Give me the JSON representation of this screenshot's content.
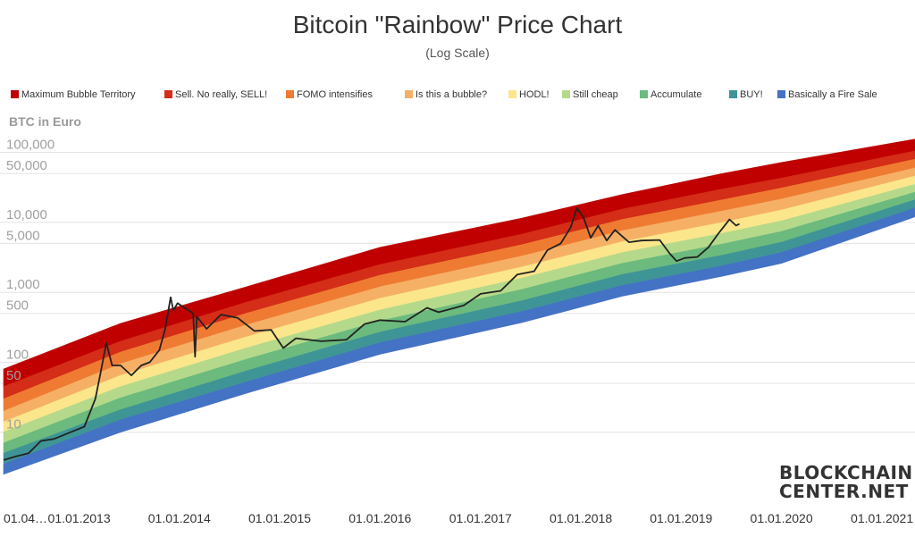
{
  "chart_data": {
    "type": "area",
    "title": "Bitcoin \"Rainbow\" Price Chart",
    "subtitle": "(Log Scale)",
    "ylabel": "BTC in Euro",
    "yscale": "log",
    "ylim": [
      1,
      350000
    ],
    "xlim": [
      "2012-04-01",
      "2021-05-01"
    ],
    "grid": true,
    "legend_position": "top",
    "x_ticks": [
      {
        "date": "2012-04-01",
        "label": "01.04…"
      },
      {
        "date": "2013-01-01",
        "label": "01.01.2013"
      },
      {
        "date": "2014-01-01",
        "label": "01.01.2014"
      },
      {
        "date": "2015-01-01",
        "label": "01.01.2015"
      },
      {
        "date": "2016-01-01",
        "label": "01.01.2016"
      },
      {
        "date": "2017-01-01",
        "label": "01.01.2017"
      },
      {
        "date": "2018-01-01",
        "label": "01.01.2018"
      },
      {
        "date": "2019-01-01",
        "label": "01.01.2019"
      },
      {
        "date": "2020-01-01",
        "label": "01.01.2020"
      },
      {
        "date": "2021-01-01",
        "label": "01.01.2021"
      }
    ],
    "y_ticks": [
      {
        "value": 10,
        "label": "10"
      },
      {
        "value": 50,
        "label": "50"
      },
      {
        "value": 100,
        "label": "100"
      },
      {
        "value": 500,
        "label": "500"
      },
      {
        "value": 1000,
        "label": "1,000"
      },
      {
        "value": 5000,
        "label": "5,000"
      },
      {
        "value": 10000,
        "label": "10,000"
      },
      {
        "value": 50000,
        "label": "50,000"
      },
      {
        "value": 100000,
        "label": "100,000"
      }
    ],
    "bands": [
      {
        "name": "Maximum Bubble Territory",
        "color": "#c00000",
        "upper": [
          {
            "date": "2012-04-01",
            "value": 80
          },
          {
            "date": "2013-06-01",
            "value": 360
          },
          {
            "date": "2014-09-01",
            "value": 1200
          },
          {
            "date": "2016-01-01",
            "value": 4400
          },
          {
            "date": "2017-06-01",
            "value": 11500
          },
          {
            "date": "2018-06-01",
            "value": 25000
          },
          {
            "date": "2019-06-01",
            "value": 50000
          },
          {
            "date": "2020-01-01",
            "value": 72000
          },
          {
            "date": "2021-05-01",
            "value": 155000
          }
        ]
      },
      {
        "name": "Sell. No really, SELL!",
        "color": "#d42d18",
        "upper": [
          {
            "date": "2012-04-01",
            "value": 45
          },
          {
            "date": "2013-06-01",
            "value": 200
          },
          {
            "date": "2014-09-01",
            "value": 720
          },
          {
            "date": "2016-01-01",
            "value": 2500
          },
          {
            "date": "2017-06-01",
            "value": 6800
          },
          {
            "date": "2018-06-01",
            "value": 15500
          },
          {
            "date": "2019-06-01",
            "value": 30000
          },
          {
            "date": "2020-01-01",
            "value": 43000
          },
          {
            "date": "2021-05-01",
            "value": 105000
          }
        ]
      },
      {
        "name": "FOMO intensifies",
        "color": "#ef7b33",
        "upper": [
          {
            "date": "2012-04-01",
            "value": 30
          },
          {
            "date": "2013-06-01",
            "value": 140
          },
          {
            "date": "2014-09-01",
            "value": 500
          },
          {
            "date": "2016-01-01",
            "value": 1750
          },
          {
            "date": "2017-06-01",
            "value": 4800
          },
          {
            "date": "2018-06-01",
            "value": 11000
          },
          {
            "date": "2019-06-01",
            "value": 21000
          },
          {
            "date": "2020-01-01",
            "value": 31000
          },
          {
            "date": "2021-05-01",
            "value": 80000
          }
        ]
      },
      {
        "name": "Is this a bubble?",
        "color": "#f6b066",
        "upper": [
          {
            "date": "2012-04-01",
            "value": 20
          },
          {
            "date": "2013-06-01",
            "value": 95
          },
          {
            "date": "2014-09-01",
            "value": 340
          },
          {
            "date": "2016-01-01",
            "value": 1200
          },
          {
            "date": "2017-06-01",
            "value": 3300
          },
          {
            "date": "2018-06-01",
            "value": 7600
          },
          {
            "date": "2019-06-01",
            "value": 14500
          },
          {
            "date": "2020-01-01",
            "value": 21500
          },
          {
            "date": "2021-05-01",
            "value": 60000
          }
        ]
      },
      {
        "name": "HODL!",
        "color": "#fbe68b",
        "upper": [
          {
            "date": "2012-04-01",
            "value": 14
          },
          {
            "date": "2013-06-01",
            "value": 65
          },
          {
            "date": "2014-09-01",
            "value": 230
          },
          {
            "date": "2016-01-01",
            "value": 820
          },
          {
            "date": "2017-06-01",
            "value": 2300
          },
          {
            "date": "2018-06-01",
            "value": 5300
          },
          {
            "date": "2019-06-01",
            "value": 10000
          },
          {
            "date": "2020-01-01",
            "value": 15000
          },
          {
            "date": "2021-05-01",
            "value": 46000
          }
        ]
      },
      {
        "name": "Still cheap",
        "color": "#b5d98a",
        "upper": [
          {
            "date": "2012-04-01",
            "value": 10
          },
          {
            "date": "2013-06-01",
            "value": 45
          },
          {
            "date": "2014-09-01",
            "value": 160
          },
          {
            "date": "2016-01-01",
            "value": 560
          },
          {
            "date": "2017-06-01",
            "value": 1600
          },
          {
            "date": "2018-06-01",
            "value": 3700
          },
          {
            "date": "2019-06-01",
            "value": 7000
          },
          {
            "date": "2020-01-01",
            "value": 10500
          },
          {
            "date": "2021-05-01",
            "value": 35000
          }
        ]
      },
      {
        "name": "Accumulate",
        "color": "#6cba7d",
        "upper": [
          {
            "date": "2012-04-01",
            "value": 7
          },
          {
            "date": "2013-06-01",
            "value": 31
          },
          {
            "date": "2014-09-01",
            "value": 110
          },
          {
            "date": "2016-01-01",
            "value": 390
          },
          {
            "date": "2017-06-01",
            "value": 1100
          },
          {
            "date": "2018-06-01",
            "value": 2600
          },
          {
            "date": "2019-06-01",
            "value": 4900
          },
          {
            "date": "2020-01-01",
            "value": 7400
          },
          {
            "date": "2021-05-01",
            "value": 27000
          }
        ]
      },
      {
        "name": "BUY!",
        "color": "#3f9596",
        "upper": [
          {
            "date": "2012-04-01",
            "value": 5
          },
          {
            "date": "2013-06-01",
            "value": 21
          },
          {
            "date": "2014-09-01",
            "value": 75
          },
          {
            "date": "2016-01-01",
            "value": 270
          },
          {
            "date": "2017-06-01",
            "value": 760
          },
          {
            "date": "2018-06-01",
            "value": 1800
          },
          {
            "date": "2019-06-01",
            "value": 3400
          },
          {
            "date": "2020-01-01",
            "value": 5200
          },
          {
            "date": "2021-05-01",
            "value": 21000
          }
        ]
      },
      {
        "name": "Basically a Fire Sale",
        "color": "#4472c4",
        "upper": [
          {
            "date": "2012-04-01",
            "value": 3.5
          },
          {
            "date": "2013-06-01",
            "value": 15
          },
          {
            "date": "2014-09-01",
            "value": 52
          },
          {
            "date": "2016-01-01",
            "value": 190
          },
          {
            "date": "2017-06-01",
            "value": 530
          },
          {
            "date": "2018-06-01",
            "value": 1250
          },
          {
            "date": "2019-06-01",
            "value": 2400
          },
          {
            "date": "2020-01-01",
            "value": 3700
          },
          {
            "date": "2021-05-01",
            "value": 16000
          }
        ],
        "lower": [
          {
            "date": "2012-04-01",
            "value": 2.5
          },
          {
            "date": "2013-06-01",
            "value": 10
          },
          {
            "date": "2014-09-01",
            "value": 36
          },
          {
            "date": "2016-01-01",
            "value": 130
          },
          {
            "date": "2017-06-01",
            "value": 370
          },
          {
            "date": "2018-06-01",
            "value": 880
          },
          {
            "date": "2019-06-01",
            "value": 1700
          },
          {
            "date": "2020-01-01",
            "value": 2600
          },
          {
            "date": "2021-05-01",
            "value": 12000
          }
        ]
      }
    ],
    "series": [
      {
        "color": "#222222",
        "points": [
          {
            "date": "2012-04-01",
            "value": 4
          },
          {
            "date": "2012-05-15",
            "value": 4.5
          },
          {
            "date": "2012-07-01",
            "value": 5
          },
          {
            "date": "2012-08-15",
            "value": 7.5
          },
          {
            "date": "2012-10-01",
            "value": 8
          },
          {
            "date": "2012-12-01",
            "value": 10
          },
          {
            "date": "2013-01-20",
            "value": 12
          },
          {
            "date": "2013-03-01",
            "value": 30
          },
          {
            "date": "2013-03-20",
            "value": 70
          },
          {
            "date": "2013-04-10",
            "value": 190
          },
          {
            "date": "2013-05-01",
            "value": 90
          },
          {
            "date": "2013-06-01",
            "value": 90
          },
          {
            "date": "2013-07-10",
            "value": 65
          },
          {
            "date": "2013-08-15",
            "value": 90
          },
          {
            "date": "2013-09-15",
            "value": 100
          },
          {
            "date": "2013-10-20",
            "value": 150
          },
          {
            "date": "2013-11-10",
            "value": 300
          },
          {
            "date": "2013-11-30",
            "value": 850
          },
          {
            "date": "2013-12-10",
            "value": 550
          },
          {
            "date": "2013-12-25",
            "value": 700
          },
          {
            "date": "2014-01-20",
            "value": 600
          },
          {
            "date": "2014-02-20",
            "value": 500
          },
          {
            "date": "2014-02-27",
            "value": 120
          },
          {
            "date": "2014-03-05",
            "value": 450
          },
          {
            "date": "2014-04-10",
            "value": 300
          },
          {
            "date": "2014-06-01",
            "value": 480
          },
          {
            "date": "2014-08-01",
            "value": 430
          },
          {
            "date": "2014-10-01",
            "value": 280
          },
          {
            "date": "2014-12-01",
            "value": 290
          },
          {
            "date": "2015-01-14",
            "value": 160
          },
          {
            "date": "2015-03-01",
            "value": 220
          },
          {
            "date": "2015-06-01",
            "value": 200
          },
          {
            "date": "2015-09-01",
            "value": 210
          },
          {
            "date": "2015-11-05",
            "value": 350
          },
          {
            "date": "2016-01-01",
            "value": 400
          },
          {
            "date": "2016-04-01",
            "value": 380
          },
          {
            "date": "2016-06-20",
            "value": 600
          },
          {
            "date": "2016-08-01",
            "value": 520
          },
          {
            "date": "2016-11-01",
            "value": 650
          },
          {
            "date": "2017-01-01",
            "value": 950
          },
          {
            "date": "2017-03-15",
            "value": 1050
          },
          {
            "date": "2017-05-15",
            "value": 1800
          },
          {
            "date": "2017-07-15",
            "value": 2000
          },
          {
            "date": "2017-09-01",
            "value": 4000
          },
          {
            "date": "2017-10-20",
            "value": 5000
          },
          {
            "date": "2017-11-25",
            "value": 8500
          },
          {
            "date": "2017-12-17",
            "value": 16000
          },
          {
            "date": "2018-01-10",
            "value": 12000
          },
          {
            "date": "2018-02-06",
            "value": 6000
          },
          {
            "date": "2018-03-05",
            "value": 9000
          },
          {
            "date": "2018-04-05",
            "value": 5500
          },
          {
            "date": "2018-05-05",
            "value": 7800
          },
          {
            "date": "2018-06-25",
            "value": 5200
          },
          {
            "date": "2018-08-10",
            "value": 5500
          },
          {
            "date": "2018-10-15",
            "value": 5600
          },
          {
            "date": "2018-11-20",
            "value": 3600
          },
          {
            "date": "2018-12-15",
            "value": 2800
          },
          {
            "date": "2019-01-15",
            "value": 3100
          },
          {
            "date": "2019-03-01",
            "value": 3200
          },
          {
            "date": "2019-04-10",
            "value": 4400
          },
          {
            "date": "2019-05-15",
            "value": 6800
          },
          {
            "date": "2019-06-26",
            "value": 11000
          },
          {
            "date": "2019-07-20",
            "value": 9000
          },
          {
            "date": "2019-08-01",
            "value": 9500
          }
        ]
      }
    ],
    "watermark": {
      "line1": "BLOCKCHAIN",
      "line2": "CENTER.NET"
    }
  }
}
